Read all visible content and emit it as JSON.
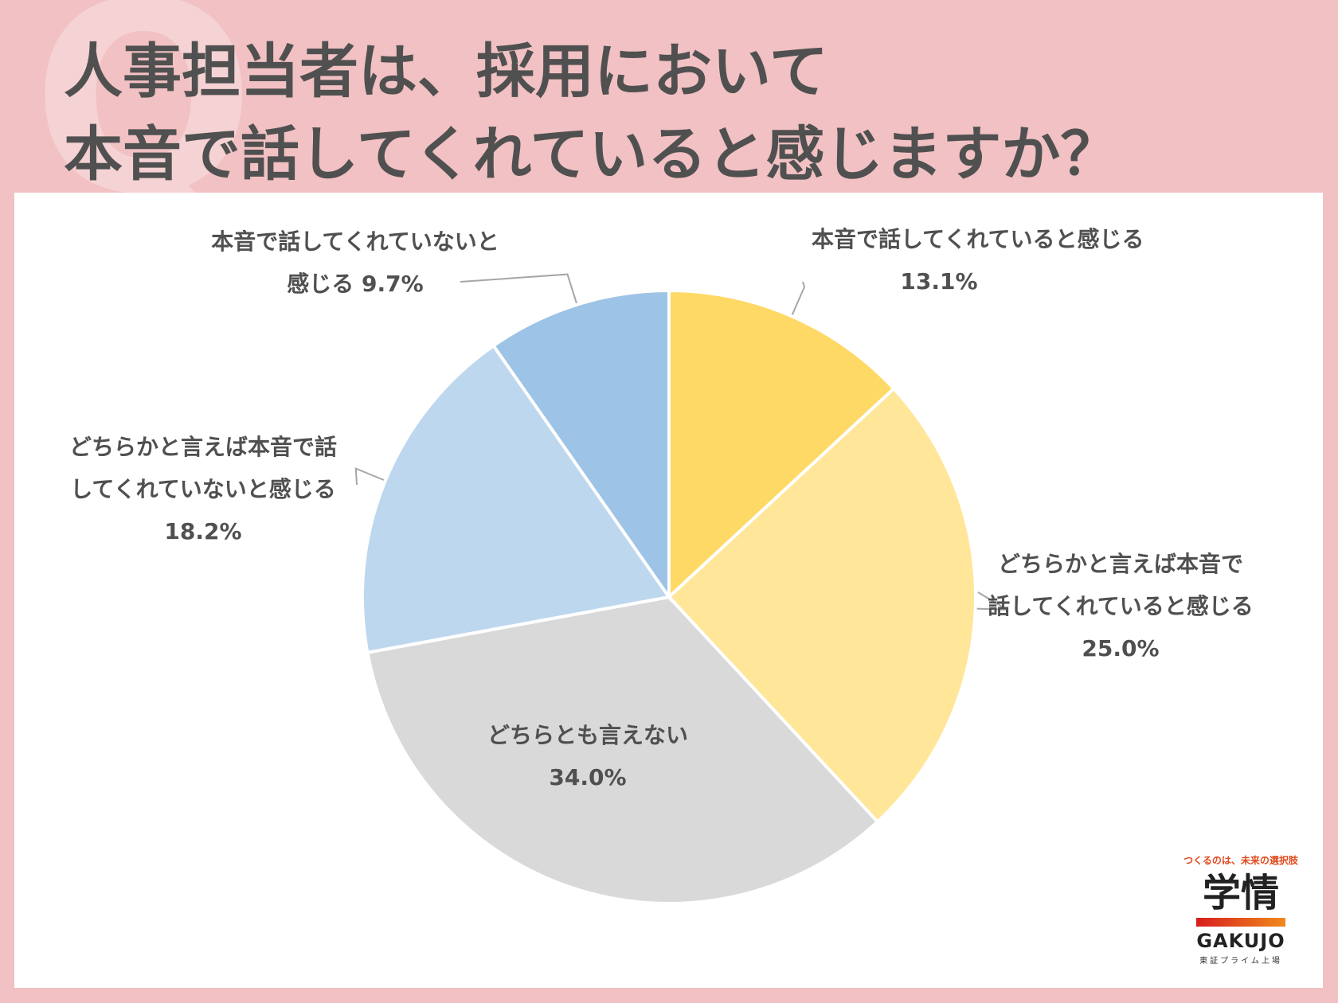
{
  "header": {
    "mark": "Q",
    "title_line1": "人事担当者は、採用において",
    "title_line2": "本音で話してくれていると感じますか？"
  },
  "chart_data": {
    "type": "pie",
    "title": "人事担当者は、採用において本音で話してくれていると感じますか？",
    "slices": [
      {
        "label_lines": [
          "本音で話してくれていると感じる"
        ],
        "value": 13.1,
        "value_text": "13.1%",
        "color": "#ffd966"
      },
      {
        "label_lines": [
          "どちらかと言えば本音で",
          "話してくれていると感じる"
        ],
        "value": 25.0,
        "value_text": "25.0%",
        "color": "#ffe699"
      },
      {
        "label_lines": [
          "どちらとも言えない"
        ],
        "value": 34.0,
        "value_text": "34.0%",
        "color": "#d9d9d9"
      },
      {
        "label_lines": [
          "どちらかと言えば本音で話",
          "してくれていないと感じる"
        ],
        "value": 18.2,
        "value_text": "18.2%",
        "color": "#bdd7ee"
      },
      {
        "label_lines": [
          "本音で話してくれていないと",
          "感じる"
        ],
        "value": 9.7,
        "value_text": "9.7%",
        "color": "#9dc3e6"
      }
    ],
    "legend": "none"
  },
  "logo": {
    "tagline": "つくるのは、未来の選択肢",
    "name": "学情",
    "name_en": "GAKUJO",
    "sub": "東証プライム上場"
  }
}
